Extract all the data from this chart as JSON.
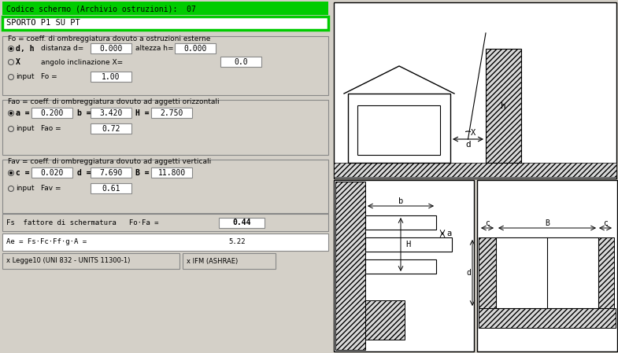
{
  "bg_color": "#d4d0c8",
  "green_bg": "#00cc00",
  "white": "#ffffff",
  "black": "#000000",
  "title_text": "Codice schermo (Archivio ostruzioni):  07",
  "subtitle_text": "SPORTO P1 SU PT",
  "fo_label": "Fo = coeff. di ombreggiatura dovuto a ostruzioni esterne",
  "fo_row1_label": "d, h",
  "fo_row1_dist_label": "distanza d=",
  "fo_row1_dist_val": "0.000",
  "fo_row1_alt_label": "altezza h=",
  "fo_row1_alt_val": "0.000",
  "fo_row2_label": "X",
  "fo_row2_angle_label": "angolo inclinazione X=",
  "fo_row2_angle_val": "0.0",
  "fo_row3_label": "input",
  "fo_row3_fo_label": "Fo =",
  "fo_row3_fo_val": "1.00",
  "fao_label": "Fao = coeff. di ombreggiatura dovuto ad aggetti orizzontali",
  "fao_row1_a_label": "a =",
  "fao_row1_a_val": "0.200",
  "fao_row1_b_label": "b =",
  "fao_row1_b_val": "3.420",
  "fao_row1_H_label": "H =",
  "fao_row1_H_val": "2.750",
  "fao_row2_label": "input",
  "fao_row2_fao_label": "Fao =",
  "fao_row2_fao_val": "0.72",
  "fav_label": "Fav = coeff. di ombreggiatura dovuto ad aggetti verticali",
  "fav_row1_c_label": "c =",
  "fav_row1_c_val": "0.020",
  "fav_row1_d_label": "d =",
  "fav_row1_d_val": "7.690",
  "fav_row1_B_label": "B =",
  "fav_row1_B_val": "11.800",
  "fav_row2_label": "input",
  "fav_row2_fav_label": "Fav =",
  "fav_row2_fav_val": "0.61",
  "fs_label": "Fs  fattore di schermatura   Fo·Fa =",
  "fs_val": "0.44",
  "ae_label": "Ae = Fs·Fc·Ff·g·A =",
  "ae_val": "5.22",
  "btn1_text": "x Legge10 (UNI 832 - UNITS 11300-1)",
  "btn2_text": "x IFM (ASHRAE)"
}
